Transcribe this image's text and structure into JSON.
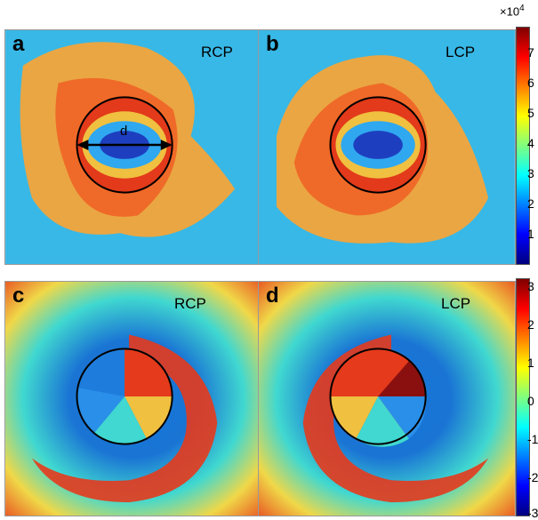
{
  "panels": {
    "a": {
      "letter": "a",
      "pol": "RCP",
      "annotation": "d"
    },
    "b": {
      "letter": "b",
      "pol": "LCP"
    },
    "c": {
      "letter": "c",
      "pol": "RCP"
    },
    "d": {
      "letter": "d",
      "pol": "LCP"
    }
  },
  "colorbar_top": {
    "multiplier_base": "×10",
    "multiplier_exp": "4",
    "ticks": [
      "7",
      "6",
      "5",
      "4",
      "3",
      "2",
      "1"
    ]
  },
  "colorbar_bottom": {
    "ticks": [
      "3",
      "2",
      "1",
      "0",
      "-1",
      "-2",
      "-3"
    ]
  },
  "colors": {
    "jet_dark_red": "#7f0000",
    "jet_red": "#ff0000",
    "jet_yellow": "#ffff00",
    "jet_cyan": "#00ffff",
    "jet_blue": "#0000ff",
    "jet_dark_blue": "#00007f"
  }
}
